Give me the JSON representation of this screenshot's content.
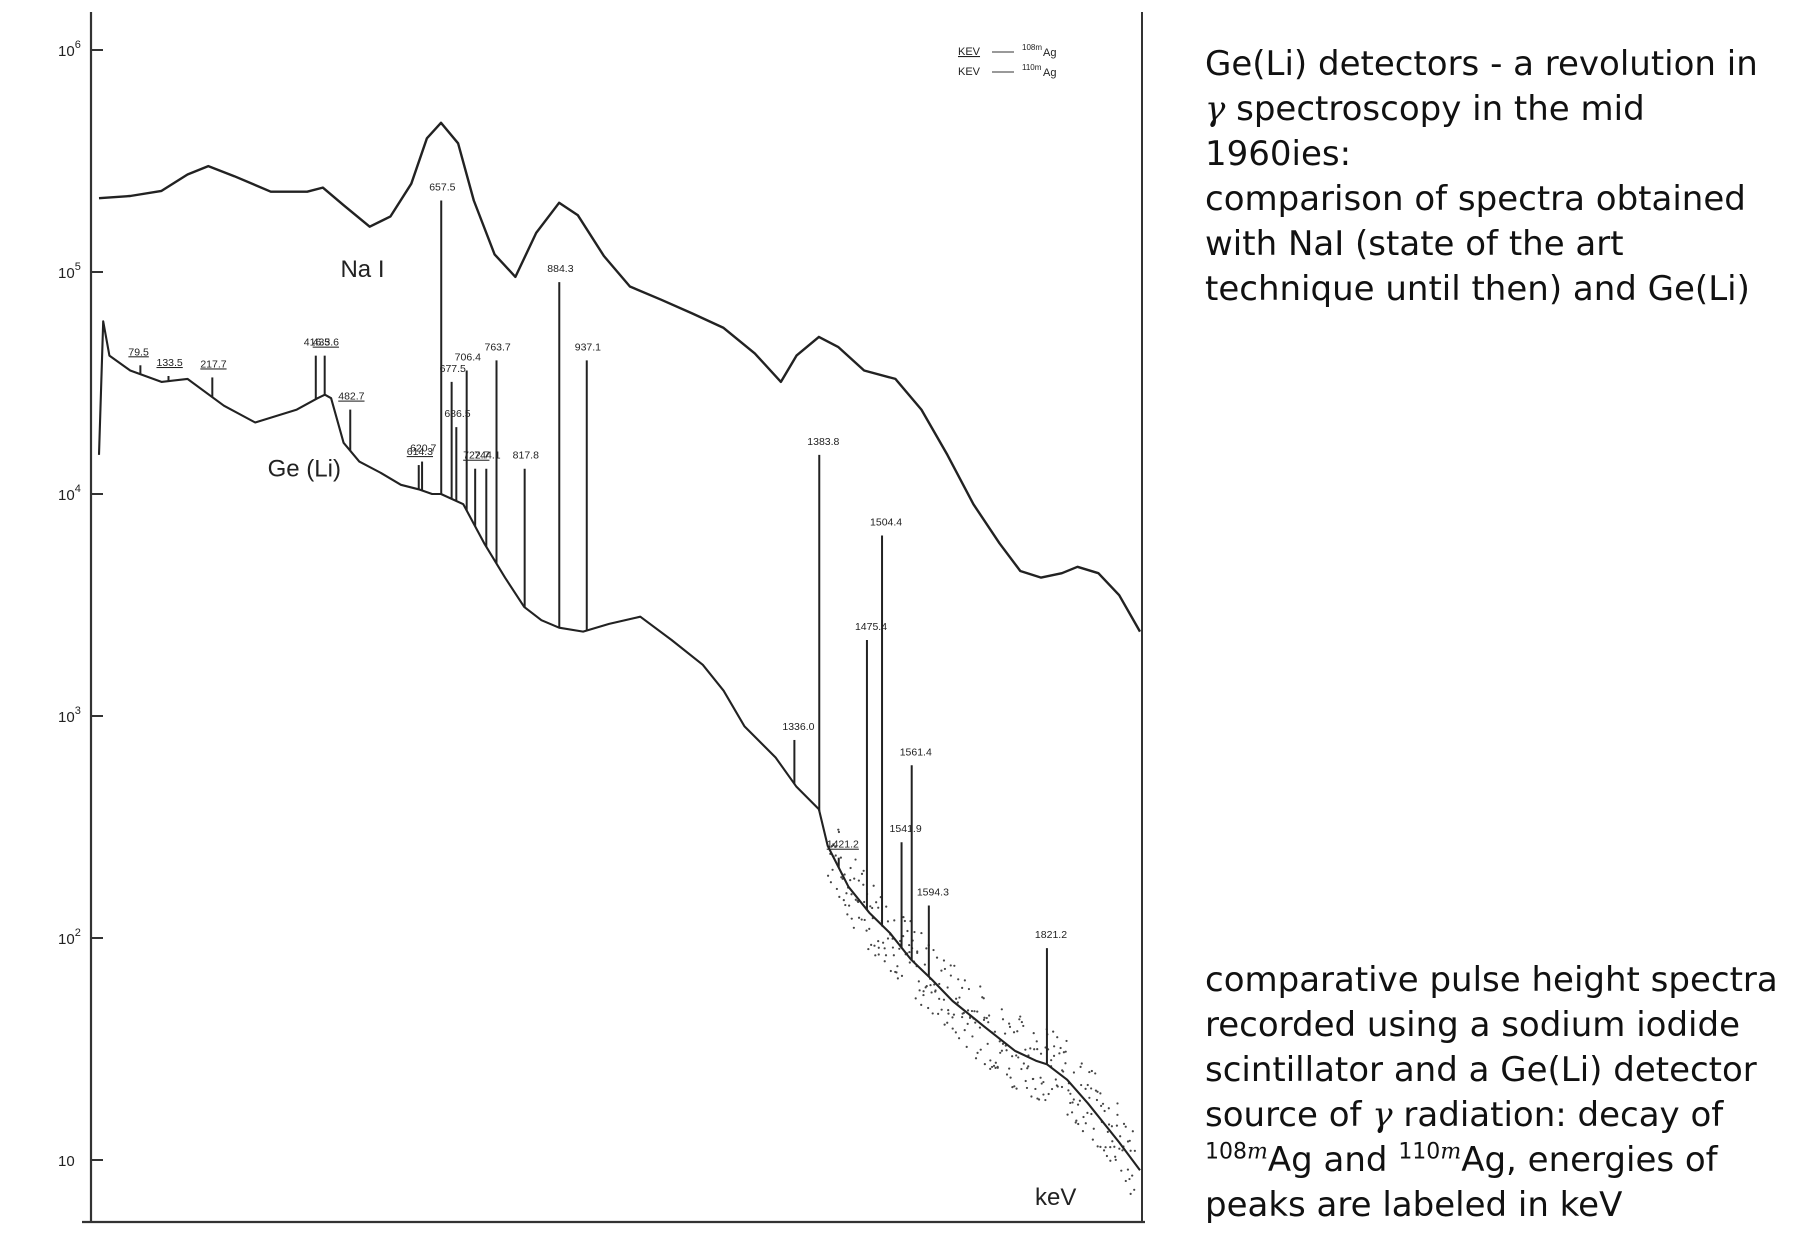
{
  "description_top": {
    "line1_pre": "Ge(Li) detectors - a revolution in ",
    "gamma_symbol": "γ",
    "line1_post": " spectroscopy in the mid 1960ies:",
    "line2": "comparison of spectra obtained with NaI (state of the art technique until then) and Ge(Li)"
  },
  "description_bottom": {
    "line1": "comparative pulse height spectra recorded using a sodium iodide scintillator and a Ge(Li) detector",
    "line2_pre": "source of ",
    "gamma_symbol": "γ",
    "line2_post": " radiation: decay of ",
    "isotope1_mass": "108",
    "isotope1_m": "m",
    "isotope1_el": "Ag",
    "and_word": " and ",
    "isotope2_mass": "110",
    "isotope2_m": "m",
    "isotope2_el": "Ag",
    "line2_end": ", energies of peaks are labeled in keV"
  },
  "chart_data": {
    "type": "line",
    "scale_y": "log",
    "x_unit_label": "keV",
    "x_range_keV": [
      0,
      2000
    ],
    "ylim": [
      5,
      1000000
    ],
    "y_ticks": [
      {
        "value": 1000000,
        "base": "10",
        "exp": "6"
      },
      {
        "value": 100000,
        "base": "10",
        "exp": "5"
      },
      {
        "value": 10000,
        "base": "10",
        "exp": "4"
      },
      {
        "value": 1000,
        "base": "10",
        "exp": "3"
      },
      {
        "value": 100,
        "base": "10",
        "exp": "2"
      },
      {
        "value": 10,
        "base": "10",
        "exp": ""
      }
    ],
    "legend": {
      "placement": "top-right",
      "entries": [
        {
          "label": "KEV",
          "isotope_mass": "108m",
          "isotope_el": "Ag",
          "underlined": true
        },
        {
          "label": "KEV",
          "isotope_mass": "110m",
          "isotope_el": "Ag",
          "underlined": false
        }
      ]
    },
    "series": [
      {
        "name": "Na I",
        "style": "solid",
        "x": [
          0,
          60,
          120,
          170,
          210,
          260,
          330,
          400,
          430,
          470,
          520,
          560,
          600,
          630,
          657,
          690,
          720,
          760,
          800,
          840,
          884,
          920,
          970,
          1020,
          1080,
          1140,
          1200,
          1260,
          1310,
          1340,
          1383,
          1420,
          1470,
          1530,
          1580,
          1630,
          1680,
          1730,
          1770,
          1810,
          1850,
          1880,
          1920,
          1960,
          2000
        ],
        "y": [
          215000,
          220000,
          232000,
          275000,
          300000,
          270000,
          230000,
          230000,
          240000,
          200000,
          160000,
          178000,
          250000,
          400000,
          470000,
          380000,
          210000,
          120000,
          95000,
          150000,
          205000,
          180000,
          118000,
          86000,
          75000,
          65000,
          56000,
          43000,
          32000,
          42000,
          51000,
          46000,
          36000,
          33000,
          24000,
          15000,
          9000,
          6000,
          4500,
          4200,
          4400,
          4700,
          4400,
          3500,
          2400
        ]
      },
      {
        "name": "Ge (Li)",
        "style": "solid",
        "x": [
          0,
          8,
          20,
          60,
          120,
          170,
          240,
          300,
          380,
          420,
          434,
          446,
          470,
          500,
          540,
          580,
          614,
          640,
          657,
          700,
          740,
          780,
          817,
          850,
          884,
          930,
          980,
          1040,
          1100,
          1160,
          1200,
          1240,
          1300,
          1340,
          1383,
          1400,
          1440,
          1480,
          1520,
          1560,
          1600,
          1640,
          1700,
          1760,
          1800,
          1821,
          1860,
          1900,
          1960,
          2000
        ],
        "y": [
          15000,
          60000,
          42000,
          36000,
          32000,
          33000,
          25000,
          21000,
          24000,
          27000,
          28000,
          27000,
          17000,
          14000,
          12500,
          11000,
          10500,
          10000,
          10000,
          9000,
          6000,
          4200,
          3100,
          2700,
          2500,
          2400,
          2600,
          2800,
          2200,
          1700,
          1300,
          900,
          650,
          480,
          380,
          260,
          170,
          130,
          105,
          80,
          65,
          52,
          40,
          31,
          28,
          27,
          23,
          18,
          12,
          9
        ]
      }
    ],
    "peaks": [
      {
        "label": "79.5",
        "x": 79.5,
        "y": 38000,
        "underlined": true
      },
      {
        "label": "133.5",
        "x": 133.5,
        "y": 34000,
        "underlined": true
      },
      {
        "label": "217.7",
        "x": 217.7,
        "y": 33500,
        "underlined": true
      },
      {
        "label": "416.5",
        "x": 416.5,
        "y": 42000,
        "underlined": false
      },
      {
        "label": "433.6",
        "x": 433.6,
        "y": 42000,
        "underlined": true
      },
      {
        "label": "482.7",
        "x": 482.7,
        "y": 24000,
        "underlined": true
      },
      {
        "label": "620.7",
        "x": 620.7,
        "y": 14000,
        "underlined": false
      },
      {
        "label": "614.3",
        "x": 614.3,
        "y": 13500,
        "underlined": true
      },
      {
        "label": "657.5",
        "x": 657.5,
        "y": 210000,
        "underlined": false
      },
      {
        "label": "677.5",
        "x": 677.5,
        "y": 32000,
        "underlined": false
      },
      {
        "label": "686.5",
        "x": 686.5,
        "y": 20000,
        "underlined": false
      },
      {
        "label": "706.4",
        "x": 706.4,
        "y": 36000,
        "underlined": false
      },
      {
        "label": "722.7",
        "x": 722.7,
        "y": 13000,
        "underlined": true
      },
      {
        "label": "744.1",
        "x": 744.1,
        "y": 13000,
        "underlined": false
      },
      {
        "label": "763.7",
        "x": 763.7,
        "y": 40000,
        "underlined": false
      },
      {
        "label": "817.8",
        "x": 817.8,
        "y": 13000,
        "underlined": false
      },
      {
        "label": "884.3",
        "x": 884.3,
        "y": 90000,
        "underlined": false
      },
      {
        "label": "937.1",
        "x": 937.1,
        "y": 40000,
        "underlined": false
      },
      {
        "label": "1336.0",
        "x": 1336.0,
        "y": 780,
        "underlined": false
      },
      {
        "label": "1383.8",
        "x": 1383.8,
        "y": 15000,
        "underlined": false
      },
      {
        "label": "1421.2",
        "x": 1421.2,
        "y": 230,
        "underlined": true
      },
      {
        "label": "1475.4",
        "x": 1475.4,
        "y": 2200,
        "underlined": false
      },
      {
        "label": "1504.4",
        "x": 1504.4,
        "y": 6500,
        "underlined": false
      },
      {
        "label": "1541.9",
        "x": 1541.9,
        "y": 270,
        "underlined": false
      },
      {
        "label": "1561.4",
        "x": 1561.4,
        "y": 600,
        "underlined": false
      },
      {
        "label": "1594.3",
        "x": 1594.3,
        "y": 140,
        "underlined": false
      },
      {
        "label": "1821.2",
        "x": 1821.2,
        "y": 90,
        "underlined": false
      }
    ],
    "curve_labels": [
      {
        "text": "Na I",
        "x": 560,
        "y": 95000
      },
      {
        "text": "Ge (Li)",
        "x": 420,
        "y": 12000
      }
    ]
  }
}
